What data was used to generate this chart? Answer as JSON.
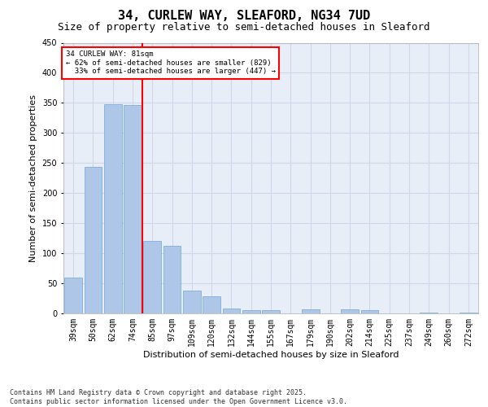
{
  "title_line1": "34, CURLEW WAY, SLEAFORD, NG34 7UD",
  "title_line2": "Size of property relative to semi-detached houses in Sleaford",
  "xlabel": "Distribution of semi-detached houses by size in Sleaford",
  "ylabel": "Number of semi-detached properties",
  "categories": [
    "39sqm",
    "50sqm",
    "62sqm",
    "74sqm",
    "85sqm",
    "97sqm",
    "109sqm",
    "120sqm",
    "132sqm",
    "144sqm",
    "155sqm",
    "167sqm",
    "179sqm",
    "190sqm",
    "202sqm",
    "214sqm",
    "225sqm",
    "237sqm",
    "249sqm",
    "260sqm",
    "272sqm"
  ],
  "values": [
    60,
    244,
    348,
    346,
    120,
    113,
    38,
    29,
    8,
    5,
    5,
    0,
    7,
    0,
    7,
    6,
    0,
    0,
    2,
    0,
    1
  ],
  "bar_color": "#aec6e8",
  "bar_edge_color": "#6fa8d6",
  "vline_x_index": 3.5,
  "vline_color": "red",
  "annotation_text": "34 CURLEW WAY: 81sqm\n← 62% of semi-detached houses are smaller (829)\n  33% of semi-detached houses are larger (447) →",
  "annotation_box_color": "white",
  "annotation_box_edge_color": "red",
  "grid_color": "#d0d8e8",
  "background_color": "#e8eef8",
  "ylim": [
    0,
    450
  ],
  "yticks": [
    0,
    50,
    100,
    150,
    200,
    250,
    300,
    350,
    400,
    450
  ],
  "footnote": "Contains HM Land Registry data © Crown copyright and database right 2025.\nContains public sector information licensed under the Open Government Licence v3.0.",
  "title_fontsize": 11,
  "subtitle_fontsize": 9,
  "tick_fontsize": 7,
  "label_fontsize": 8,
  "footnote_fontsize": 6
}
